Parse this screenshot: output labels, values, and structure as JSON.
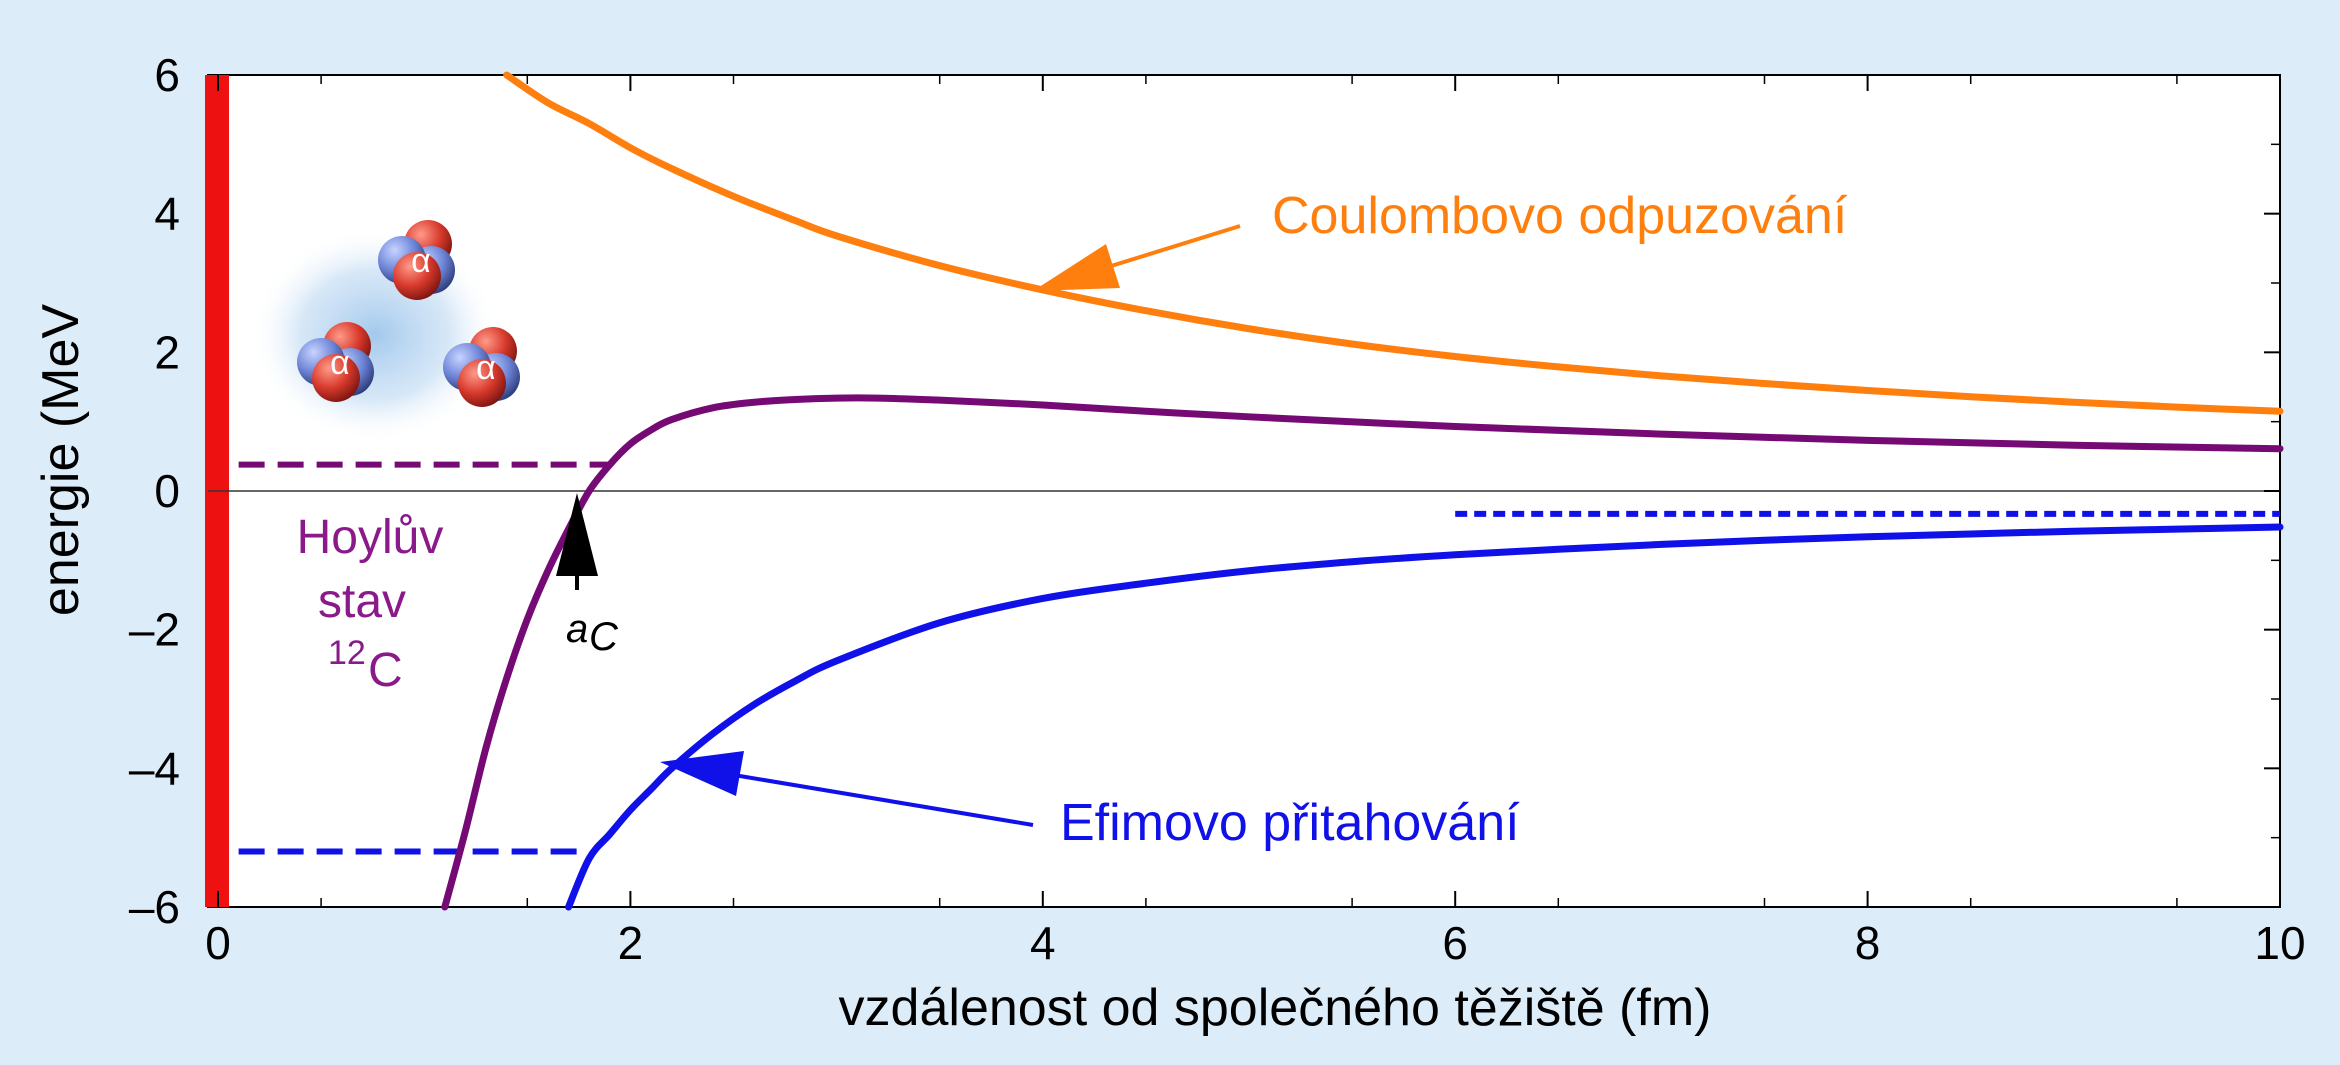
{
  "chart_data": {
    "type": "line",
    "xlabel": "vzdálenost od společného těžiště (fm)",
    "ylabel": "energie (MeV",
    "xlim": [
      0,
      10
    ],
    "ylim": [
      -6,
      6
    ],
    "x_ticks": [
      0,
      2,
      4,
      6,
      8,
      10
    ],
    "y_ticks": [
      6,
      4,
      2,
      0,
      -2,
      -4,
      -6
    ],
    "x_tick_labels": [
      "0",
      "2",
      "4",
      "6",
      "8",
      "10"
    ],
    "y_tick_labels": [
      "6",
      "4",
      "2",
      "0",
      "–2",
      "–4",
      "–6"
    ],
    "grid": false,
    "zero_line": true,
    "series": [
      {
        "name": "Coulombovo odpuzování",
        "color": "#ff7f0e",
        "x": [
          1.4,
          1.6,
          1.8,
          2.0,
          2.2,
          2.5,
          2.8,
          3.0,
          3.5,
          4.0,
          4.5,
          5.0,
          5.5,
          6.0,
          6.5,
          7.0,
          7.5,
          8.0,
          8.5,
          9.0,
          9.5,
          10.0
        ],
        "y": [
          6.0,
          5.6,
          5.3,
          4.95,
          4.65,
          4.25,
          3.9,
          3.68,
          3.25,
          2.9,
          2.6,
          2.34,
          2.12,
          1.94,
          1.79,
          1.66,
          1.55,
          1.45,
          1.36,
          1.28,
          1.21,
          1.15
        ]
      },
      {
        "name": "",
        "color": "#750a75",
        "x": [
          1.1,
          1.2,
          1.3,
          1.4,
          1.5,
          1.6,
          1.7,
          1.8,
          1.9,
          2.0,
          2.1,
          2.2,
          2.4,
          2.6,
          2.8,
          3.0,
          3.2,
          3.5,
          4.0,
          4.5,
          5.0,
          6.0,
          7.0,
          8.0,
          9.0,
          10.0
        ],
        "y": [
          -6.0,
          -4.9,
          -3.7,
          -2.7,
          -1.85,
          -1.15,
          -0.55,
          0.0,
          0.38,
          0.68,
          0.88,
          1.03,
          1.2,
          1.28,
          1.32,
          1.34,
          1.34,
          1.31,
          1.24,
          1.15,
          1.07,
          0.93,
          0.82,
          0.73,
          0.66,
          0.61
        ]
      },
      {
        "name": "",
        "color": "#1010e8",
        "x": [
          1.7,
          1.8,
          1.9,
          2.0,
          2.1,
          2.2,
          2.4,
          2.6,
          2.8,
          3.0,
          3.5,
          4.0,
          4.5,
          5.0,
          5.5,
          6.0,
          6.5,
          7.0,
          7.5,
          8.0,
          8.5,
          9.0,
          9.5,
          10.0
        ],
        "y": [
          -6.0,
          -5.3,
          -4.95,
          -4.6,
          -4.3,
          -4.0,
          -3.5,
          -3.08,
          -2.74,
          -2.45,
          -1.9,
          -1.55,
          -1.33,
          -1.15,
          -1.02,
          -0.92,
          -0.84,
          -0.77,
          -0.71,
          -0.66,
          -0.62,
          -0.58,
          -0.55,
          -0.52
        ]
      }
    ],
    "levels": [
      {
        "y": 0.38,
        "x": [
          0.1,
          1.9
        ],
        "color": "#750a75",
        "style": "dashed"
      },
      {
        "y": -5.2,
        "x": [
          0.1,
          1.8
        ],
        "color": "#1010e8",
        "style": "dashed"
      },
      {
        "y": -0.33,
        "x": [
          6.0,
          10.0
        ],
        "color": "#1010e8",
        "style": "dotted"
      }
    ],
    "annotations": {
      "coulomb": {
        "text": "Coulombovo odpuzování",
        "color": "#ff7f0e",
        "points_to": [
          4.0,
          2.9
        ]
      },
      "efimov": {
        "text": "Efimovo přitahování",
        "color": "#1010e8",
        "points_to": [
          2.2,
          -4.0
        ]
      },
      "hoyle": {
        "lines": [
          "Hoylův",
          "stav"
        ],
        "isotope_mass": "12",
        "isotope_symbol": "C",
        "color": "#8a1a8a"
      },
      "ac": {
        "symbol": "a",
        "subscript": "C",
        "points_to": [
          1.8,
          0.0
        ]
      }
    },
    "inset": {
      "particle_label": "α",
      "count": 3
    }
  }
}
